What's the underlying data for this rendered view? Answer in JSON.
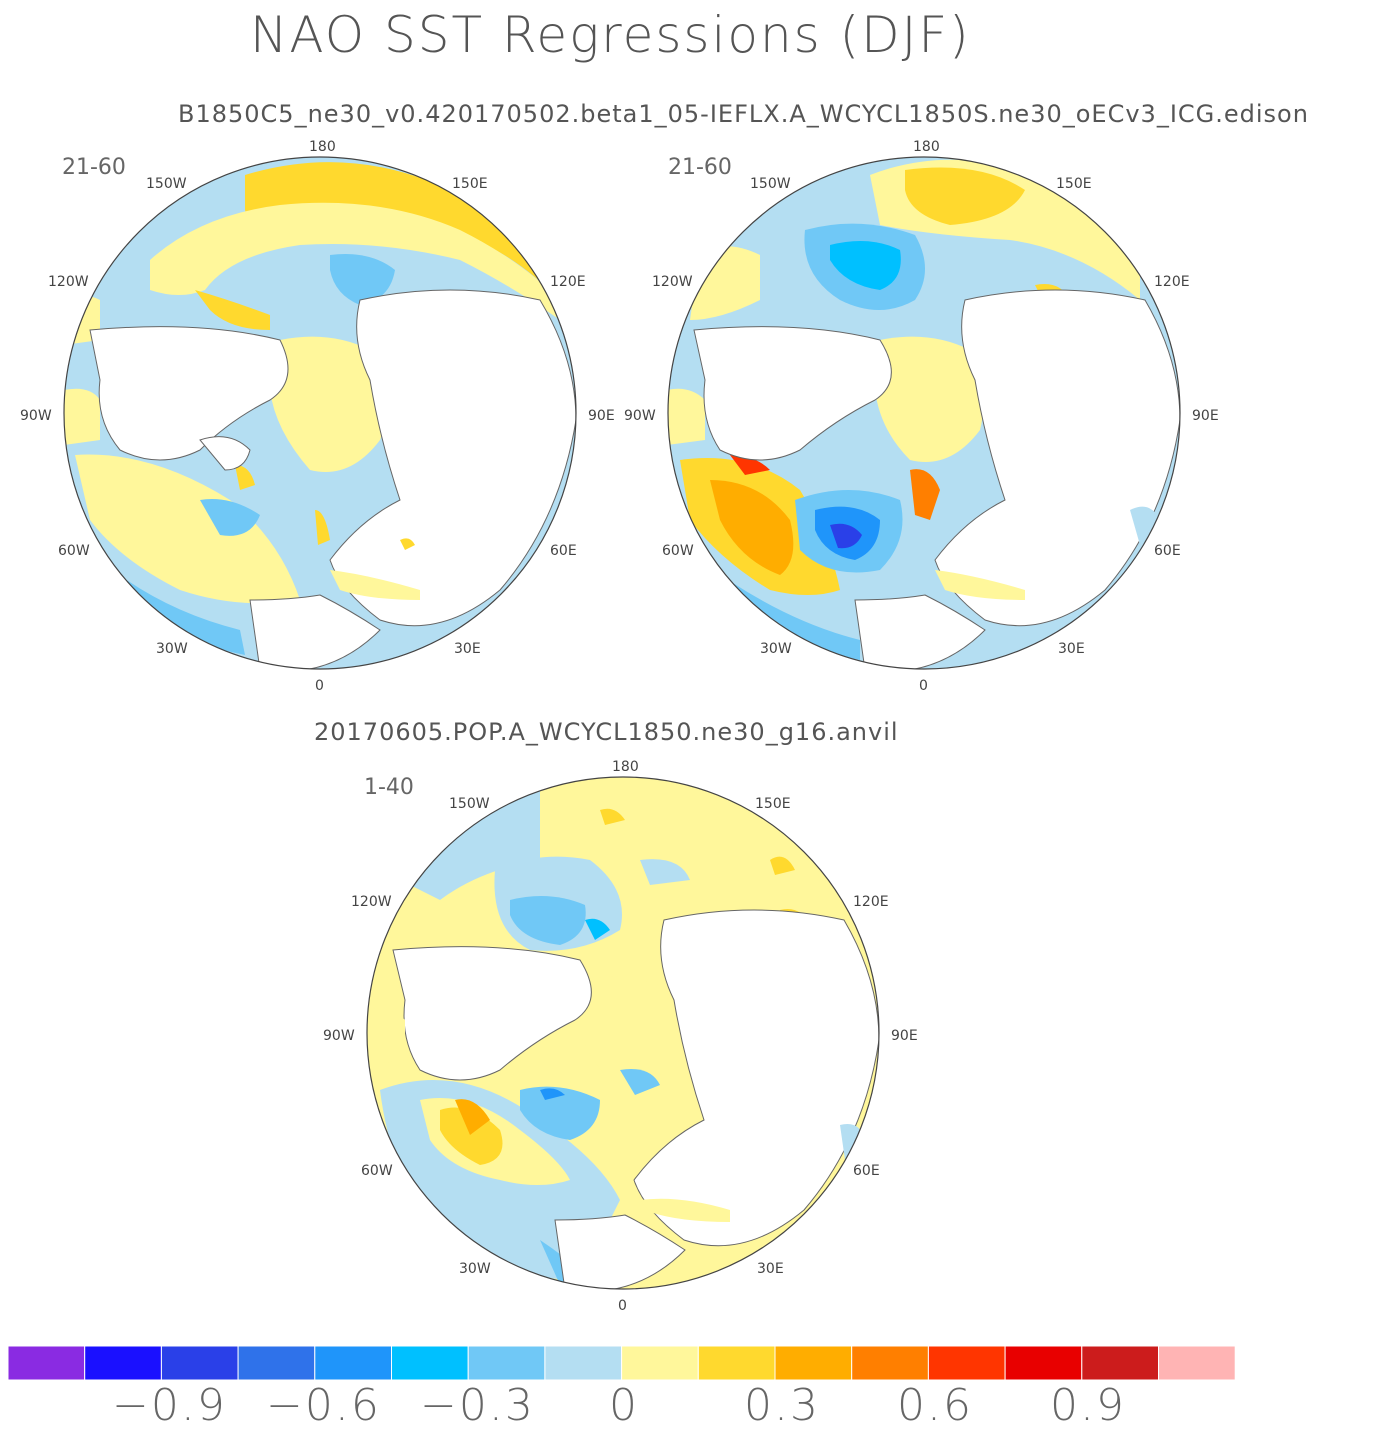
{
  "title": "NAO SST Regressions (DJF)",
  "subtitle_top": "B1850C5_ne30_v0.420170502.beta1_05-IEFLX.A_WCYCL1850S.ne30_oECv3_ICG.edison",
  "subtitle_bottom": "20170605.POP.A_WCYCL1850.ne30_g16.anvil",
  "panels": [
    {
      "name": "panel-top-left",
      "years": "21-60"
    },
    {
      "name": "panel-top-right",
      "years": "21-60"
    },
    {
      "name": "panel-bottom",
      "years": "1-40"
    }
  ],
  "longitude_labels": [
    "180",
    "150E",
    "120E",
    "90E",
    "60E",
    "30E",
    "0",
    "30W",
    "60W",
    "90W",
    "120W",
    "150W"
  ],
  "colorbar": {
    "colors": [
      "#8a2be2",
      "#1a10ff",
      "#2a40e8",
      "#2f72ea",
      "#1f95fa",
      "#00c0ff",
      "#70c8f6",
      "#b4def2",
      "#fff79b",
      "#ffd92e",
      "#ffad00",
      "#ff7f00",
      "#ff3500",
      "#e80000",
      "#cc1c1c",
      "#ffb4b4"
    ],
    "tick_labels": [
      "-0.9",
      "-0.6",
      "-0.3",
      "0",
      "0.3",
      "0.6",
      "0.9"
    ],
    "tick_values": [
      -0.9,
      -0.6,
      -0.3,
      0,
      0.3,
      0.6,
      0.9
    ]
  },
  "colors": {
    "ocean_light_blue": "#b4def2",
    "light_yellow": "#fff79b",
    "yellow": "#ffd92e",
    "orange": "#ffad00",
    "blue": "#70c8f6",
    "deep_blue": "#2a40e8",
    "land": "#ffffff"
  }
}
